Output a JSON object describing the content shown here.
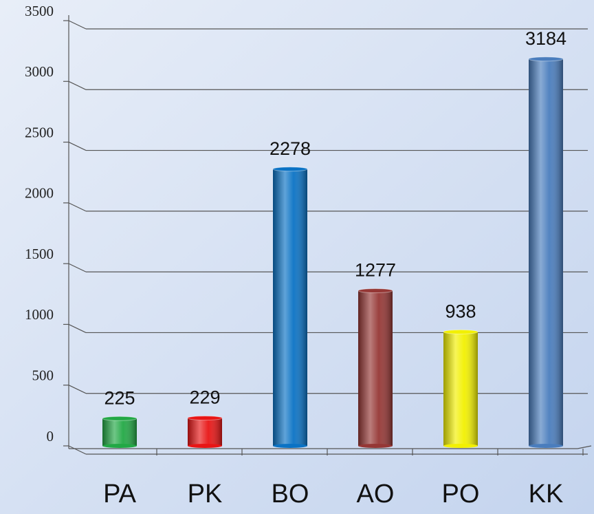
{
  "chart_data": {
    "type": "bar",
    "categories": [
      "PA",
      "PK",
      "BO",
      "AO",
      "PO",
      "KK"
    ],
    "values": [
      225,
      229,
      2278,
      1277,
      938,
      3184
    ],
    "colors": [
      "#22a845",
      "#e81515",
      "#0a72c4",
      "#953735",
      "#f2f000",
      "#4a7dbd"
    ],
    "ylim": [
      0,
      3500
    ],
    "yticks": [
      0,
      500,
      1000,
      1500,
      2000,
      2500,
      3000,
      3500
    ],
    "grid": true
  }
}
